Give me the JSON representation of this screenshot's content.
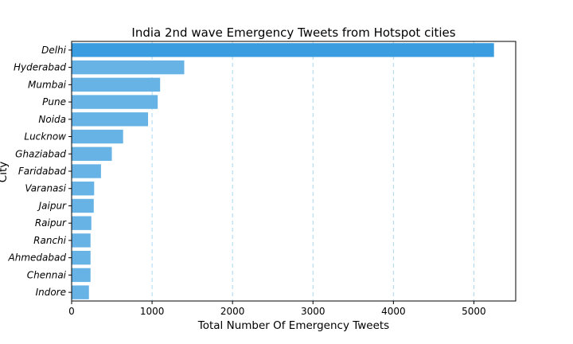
{
  "chart_data": {
    "type": "bar",
    "orientation": "horizontal",
    "title": "India 2nd wave Emergency Tweets from Hotspot cities",
    "xlabel": "Total Number Of Emergency Tweets",
    "ylabel": "City",
    "xlim": [
      0,
      5520
    ],
    "xticks": [
      0,
      1000,
      2000,
      3000,
      4000,
      5000
    ],
    "grid": "vertical dashed",
    "colors": {
      "bar": "#67b3e6",
      "top_bar": "#3a9de0",
      "grid": "#a9d6f2"
    },
    "categories": [
      "Delhi",
      "Hyderabad",
      "Mumbai",
      "Pune",
      "Noida",
      "Lucknow",
      "Ghaziabad",
      "Faridabad",
      "Varanasi",
      "Jaipur",
      "Raipur",
      "Ranchi",
      "Ahmedabad",
      "Chennai",
      "Indore"
    ],
    "values": [
      5250,
      1400,
      1100,
      1070,
      950,
      640,
      500,
      365,
      280,
      275,
      245,
      235,
      235,
      235,
      215
    ]
  }
}
